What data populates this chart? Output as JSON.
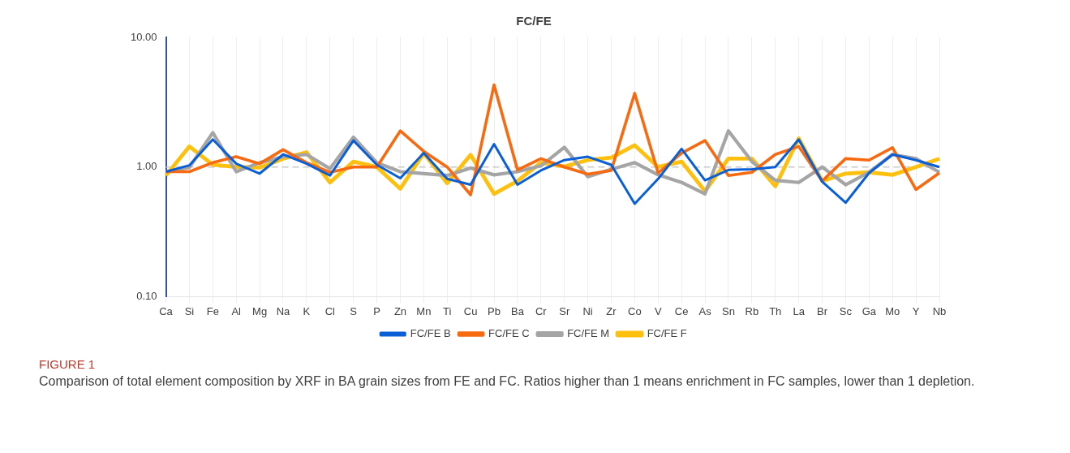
{
  "chart_data": {
    "type": "line",
    "title": "FC/FE",
    "categories": [
      "Ca",
      "Si",
      "Fe",
      "Al",
      "Mg",
      "Na",
      "K",
      "Cl",
      "S",
      "P",
      "Zn",
      "Mn",
      "Ti",
      "Cu",
      "Pb",
      "Ba",
      "Cr",
      "Sr",
      "Ni",
      "Zr",
      "Co",
      "V",
      "Ce",
      "As",
      "Sn",
      "Rb",
      "Th",
      "La",
      "Br",
      "Sc",
      "Ga",
      "Mo",
      "Y",
      "Nb"
    ],
    "series": [
      {
        "name": "FC/FE B",
        "color": "#0a5fd6",
        "values": [
          0.92,
          1.03,
          1.63,
          1.06,
          0.89,
          1.25,
          1.06,
          0.86,
          1.6,
          1.04,
          0.82,
          1.28,
          0.81,
          0.73,
          1.5,
          0.73,
          0.94,
          1.13,
          1.2,
          1.04,
          0.52,
          0.81,
          1.38,
          0.79,
          0.95,
          0.96,
          1.0,
          1.63,
          0.77,
          0.53,
          0.9,
          1.25,
          1.13,
          1.0
        ]
      },
      {
        "name": "FC/FE C",
        "color": "#f76a12",
        "values": [
          0.92,
          0.92,
          1.08,
          1.2,
          1.06,
          1.36,
          1.08,
          0.91,
          1.0,
          1.0,
          1.9,
          1.32,
          1.0,
          0.61,
          4.3,
          0.95,
          1.16,
          1.0,
          0.88,
          0.94,
          3.7,
          0.9,
          1.28,
          1.6,
          0.86,
          0.91,
          1.25,
          1.44,
          0.78,
          1.16,
          1.13,
          1.41,
          0.67,
          0.9
        ]
      },
      {
        "name": "FC/FE M",
        "color": "#a5a5a5",
        "values": [
          0.92,
          0.99,
          1.84,
          0.92,
          1.08,
          1.2,
          1.25,
          0.97,
          1.7,
          1.08,
          0.92,
          0.89,
          0.86,
          0.98,
          0.87,
          0.92,
          1.02,
          1.42,
          0.84,
          0.96,
          1.08,
          0.87,
          0.76,
          0.62,
          1.9,
          1.1,
          0.79,
          0.76,
          1.0,
          0.73,
          0.91,
          1.25,
          1.16,
          0.91
        ]
      },
      {
        "name": "FC/FE F",
        "color": "#fdc00f",
        "values": [
          0.86,
          1.44,
          1.04,
          1.0,
          0.99,
          1.16,
          1.3,
          0.76,
          1.1,
          1.0,
          0.68,
          1.28,
          0.75,
          1.24,
          0.62,
          0.78,
          1.08,
          1.01,
          1.13,
          1.18,
          1.47,
          1.0,
          1.1,
          0.65,
          1.16,
          1.16,
          0.71,
          1.66,
          0.78,
          0.89,
          0.91,
          0.87,
          1.0,
          1.16
        ]
      }
    ],
    "log": "y",
    "ylim": [
      0.1,
      10
    ],
    "yticks": [
      {
        "value": 0.1,
        "label": "0.10"
      },
      {
        "value": 1,
        "label": "1.00"
      },
      {
        "value": 10,
        "label": "10.00"
      }
    ],
    "grid": "x",
    "ref_lines": [
      {
        "axis": "y",
        "value": 1,
        "color": "#c8c8c8",
        "line_style": "dashed"
      }
    ],
    "legend": "bottom",
    "marker": "none",
    "line_style": "solid",
    "annotations": [
      "FIGURE 1",
      "Comparison of total element composition by XRF in BA grain sizes from FE and FC. Ratios higher than 1 means enrichment in FC samples, lower than 1 depletion."
    ]
  }
}
